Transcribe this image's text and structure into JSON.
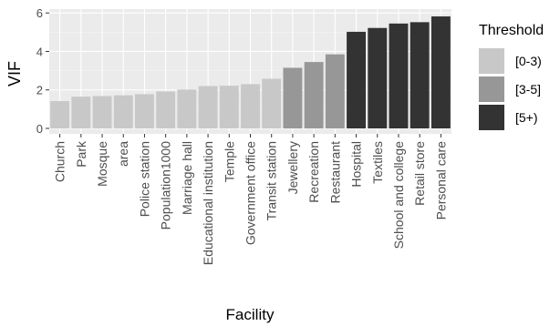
{
  "chart_data": {
    "type": "bar",
    "xlabel": "Facility",
    "ylabel": "VIF",
    "ylim": [
      0,
      6
    ],
    "yticks": [
      0,
      2,
      4,
      6
    ],
    "grid": true,
    "legend_position": "right",
    "legend": {
      "title": "Threshold",
      "entries": [
        {
          "label": "[0-3)",
          "color": "#c8c8c8"
        },
        {
          "label": "[3-5]",
          "color": "#979797"
        },
        {
          "label": "[5+)",
          "color": "#333333"
        }
      ]
    },
    "categories": [
      "Church",
      "Park",
      "Mosque",
      "area",
      "Police station",
      "Population1000",
      "Marriage hall",
      "Educational institution",
      "Temple",
      "Government office",
      "Transit station",
      "Jewellery",
      "Recreation",
      "Restaurant",
      "Hospital",
      "Textiles",
      "School and college",
      "Retail store",
      "Personal care"
    ],
    "values": [
      1.42,
      1.65,
      1.68,
      1.72,
      1.78,
      1.92,
      2.02,
      2.2,
      2.22,
      2.3,
      2.58,
      3.15,
      3.45,
      3.85,
      5.02,
      5.22,
      5.45,
      5.52,
      5.82
    ],
    "groups": [
      "[0-3)",
      "[0-3)",
      "[0-3)",
      "[0-3)",
      "[0-3)",
      "[0-3)",
      "[0-3)",
      "[0-3)",
      "[0-3)",
      "[0-3)",
      "[0-3)",
      "[3-5]",
      "[3-5]",
      "[3-5]",
      "[5+)",
      "[5+)",
      "[5+)",
      "[5+)",
      "[5+)"
    ]
  }
}
